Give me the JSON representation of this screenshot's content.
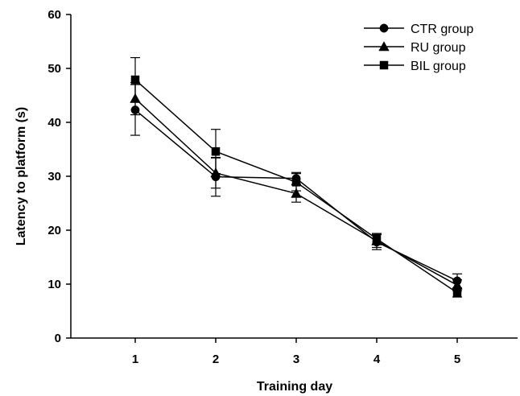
{
  "chart_data": {
    "type": "line",
    "title": "",
    "xlabel": "Training day",
    "ylabel": "Latency to platform (s)",
    "categories": [
      "1",
      "2",
      "3",
      "4",
      "5"
    ],
    "x": [
      1,
      2,
      3,
      4,
      5
    ],
    "xlim": [
      0.2,
      5.75
    ],
    "ylim": [
      0,
      60
    ],
    "yticks": [
      0,
      10,
      20,
      30,
      40,
      50,
      60
    ],
    "ytick_labels": [
      "0",
      "10",
      "20",
      "30",
      "40",
      "50",
      "60"
    ],
    "grid": false,
    "legend_position": "top-right",
    "series": [
      {
        "name": "CTR group",
        "marker": "circle",
        "values": [
          42.3,
          29.9,
          29.6,
          17.8,
          10.6
        ],
        "error": [
          4.7,
          3.6,
          1.1,
          1.4,
          1.3
        ]
      },
      {
        "name": "RU group",
        "marker": "triangle",
        "values": [
          44.4,
          30.6,
          26.8,
          18.0,
          9.8
        ],
        "error": [
          3.0,
          2.8,
          1.6,
          1.2,
          1.0
        ]
      },
      {
        "name": "BIL group",
        "marker": "square",
        "values": [
          47.9,
          34.6,
          28.9,
          18.4,
          8.4
        ],
        "error": [
          4.1,
          4.1,
          1.6,
          1.0,
          0.8
        ]
      }
    ],
    "colors": {
      "axis": "#000000",
      "series": "#000000",
      "background": "#ffffff"
    }
  }
}
